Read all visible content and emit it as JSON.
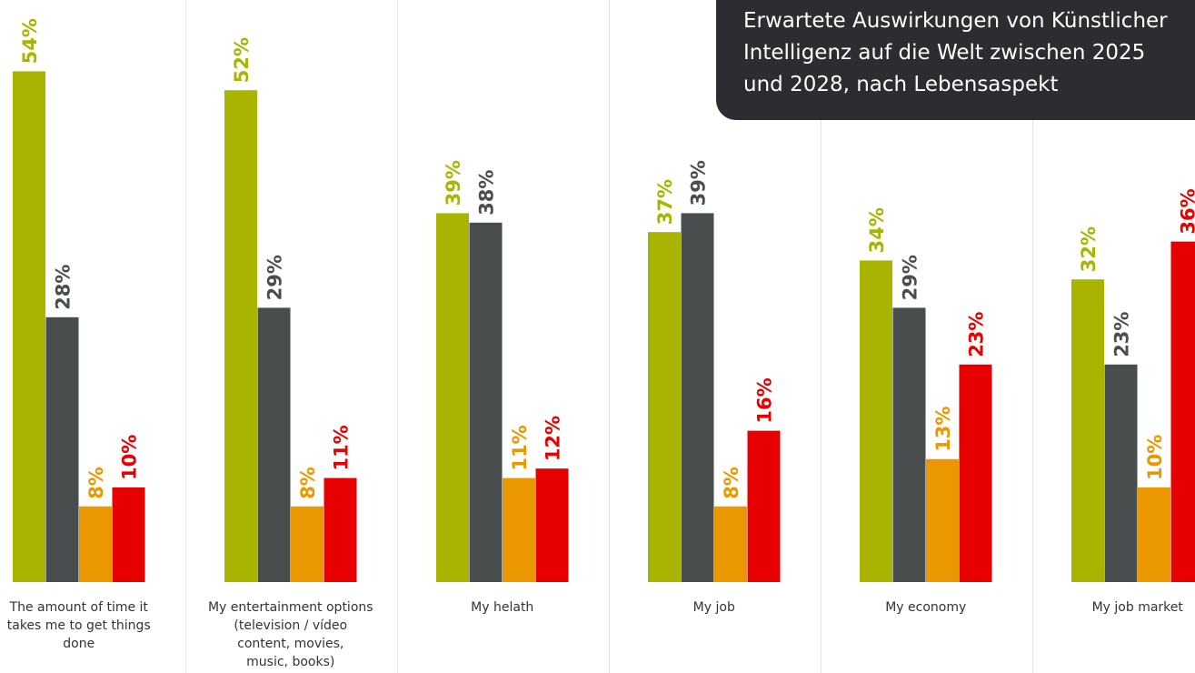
{
  "chart_data": {
    "type": "bar",
    "title_lines": [
      "Erwartete Auswirkungen von Künstlicher",
      "Intelligenz auf die Welt zwischen 2025",
      "und 2028, nach Lebensaspekt"
    ],
    "categories": [
      [
        "The amount of time it",
        "takes me to get things",
        "done"
      ],
      [
        "My entertainment options",
        "(television / vídeo",
        "content, movies,",
        "music, books)"
      ],
      [
        "My helath"
      ],
      [
        "My job"
      ],
      [
        "My economy"
      ],
      [
        "My job market"
      ]
    ],
    "series": [
      {
        "values": [
          54,
          52,
          39,
          37,
          34,
          32
        ],
        "labels": [
          "54%",
          "52%",
          "39%",
          "37%",
          "34%",
          "32%"
        ],
        "color": "#a8b400"
      },
      {
        "values": [
          28,
          29,
          38,
          39,
          29,
          23
        ],
        "labels": [
          "28%",
          "29%",
          "38%",
          "39%",
          "29%",
          "23%"
        ],
        "color": "#4a4d4e"
      },
      {
        "values": [
          8,
          8,
          11,
          8,
          13,
          10
        ],
        "labels": [
          "8%",
          "8%",
          "11%",
          "8%",
          "13%",
          "10%"
        ],
        "color": "#eb9700"
      },
      {
        "values": [
          10,
          11,
          12,
          16,
          23,
          36
        ],
        "labels": [
          "10%",
          "11%",
          "12%",
          "16%",
          "23%",
          "36%"
        ],
        "color": "#e60000"
      }
    ],
    "ylim": [
      0,
      60
    ],
    "grid": false,
    "legend": "none"
  }
}
